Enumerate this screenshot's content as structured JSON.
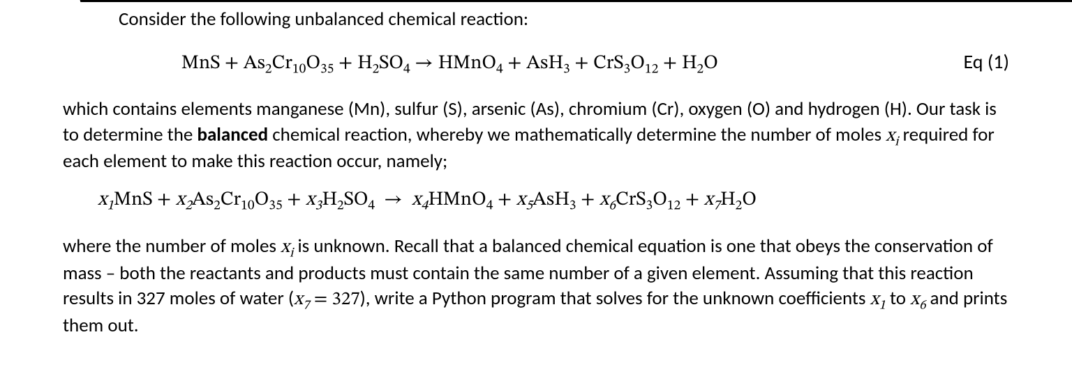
{
  "intro": "Consider the following unbalanced chemical reaction:",
  "eq1_label": "Eq (1)",
  "eq1_species": {
    "r1": "MnS",
    "r2": "As₂Cr₁₀O₃₅",
    "r3": "H₂SO₄",
    "p1": "HMnO₄",
    "p2": "AsH₃",
    "p3": "CrS₃O₁₂",
    "p4": "H₂O"
  },
  "para2_a": "which contains elements manganese (Mn), sulfur (S), arsenic (As), chromium (Cr), oxygen (O) and hydrogen (H). Our task is to determine the ",
  "para2_bold": "balanced",
  "para2_b": " chemical reaction, whereby we mathematically determine the number of moles ",
  "xi": "x",
  "xi_sub": "i",
  "para2_c": " required for each element to make this reaction occur, namely;",
  "coef": {
    "x1": "x",
    "s1": "1",
    "x2": "x",
    "s2": "2",
    "x3": "x",
    "s3": "3",
    "x4": "x",
    "s4": "4",
    "x5": "x",
    "s5": "5",
    "x6": "x",
    "s6": "6",
    "x7": "x",
    "s7": "7"
  },
  "para3_a": "where the number of moles ",
  "para3_b": " is unknown. Recall that a balanced chemical equation is one that obeys the conservation of mass – both the reactants and products must contain the same number of a given element. Assuming that this reaction results in 327 moles of water (",
  "x7_expr_lhs": "x",
  "x7_expr_sub": "7",
  "x7_expr_eq": " = 327",
  "para3_c": "), write a Python program that solves for the unknown coefficients ",
  "x1_lhs": "x",
  "x1_sub": "1",
  "para3_d": " to ",
  "x6_lhs": "x",
  "x6_sub": "6",
  "para3_e": " and prints them out.",
  "arrow": "→",
  "plus": " + "
}
